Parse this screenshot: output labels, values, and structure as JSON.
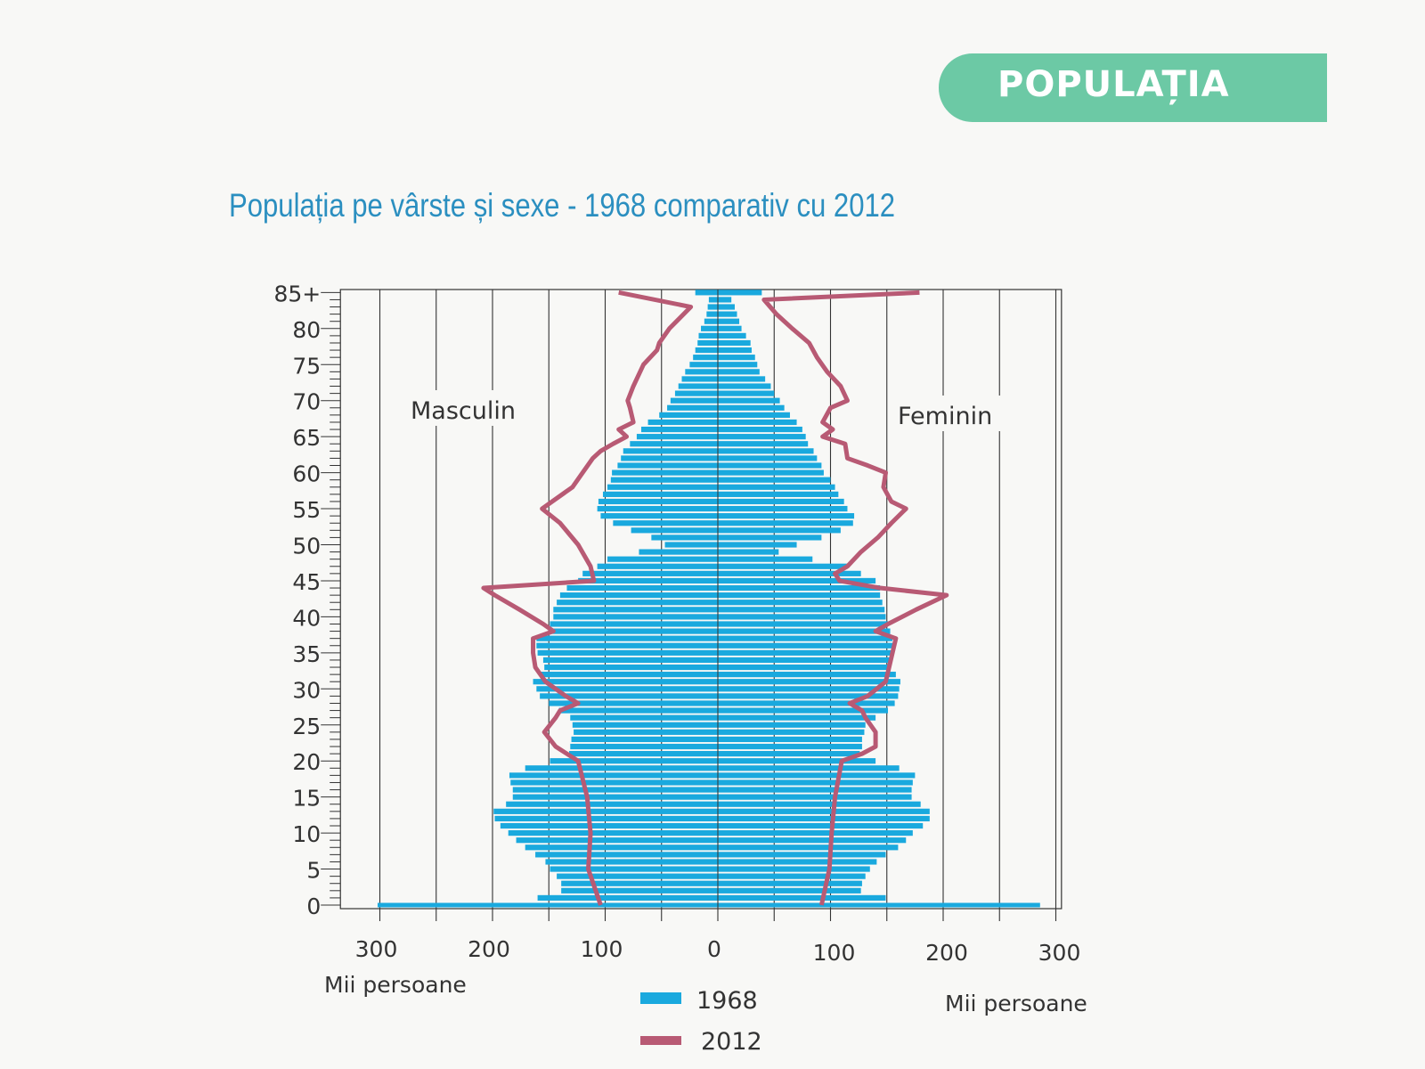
{
  "header": {
    "badge": "POPULAȚIA"
  },
  "chart_data": {
    "type": "bar",
    "subtype": "population-pyramid",
    "title": "Populația pe vârste și sexe - 1968 comparativ cu 2012",
    "xlabel_left": "Mii persoane",
    "xlabel_right": "Mii persoane",
    "side_labels": {
      "left": "Masculin",
      "right": "Feminin"
    },
    "x_ticks_left": [
      "300",
      "200",
      "100",
      "0"
    ],
    "x_ticks_right": [
      "100",
      "200",
      "300"
    ],
    "y_ticks": [
      "0",
      "5",
      "10",
      "15",
      "20",
      "25",
      "30",
      "35",
      "40",
      "45",
      "50",
      "55",
      "60",
      "65",
      "70",
      "75",
      "80",
      "85+"
    ],
    "xlim": [
      -335,
      305
    ],
    "ylim": [
      0,
      85
    ],
    "grid": "vertical, every 50",
    "legend": {
      "position": "bottom-center",
      "entries": [
        "1968",
        "2012"
      ]
    },
    "colors": {
      "1968": "#1aa9de",
      "2012": "#b85a74",
      "badge": "#6cc9a5",
      "title": "#2b8fc0"
    },
    "ages": [
      0,
      1,
      2,
      3,
      4,
      5,
      6,
      7,
      8,
      9,
      10,
      11,
      12,
      13,
      14,
      15,
      16,
      17,
      18,
      19,
      20,
      21,
      22,
      23,
      24,
      25,
      26,
      27,
      28,
      29,
      30,
      31,
      32,
      33,
      34,
      35,
      36,
      37,
      38,
      39,
      40,
      41,
      42,
      43,
      44,
      45,
      46,
      47,
      48,
      49,
      50,
      51,
      52,
      53,
      54,
      55,
      56,
      57,
      58,
      59,
      60,
      61,
      62,
      63,
      64,
      65,
      66,
      67,
      68,
      69,
      70,
      71,
      72,
      73,
      74,
      75,
      76,
      77,
      78,
      79,
      80,
      81,
      82,
      83,
      84,
      85
    ],
    "series": [
      {
        "name": "1968",
        "kind": "bars",
        "male": [
          302,
          160,
          139,
          139,
          143,
          149,
          153,
          162,
          171,
          179,
          186,
          193,
          198,
          199,
          188,
          182,
          182,
          184,
          185,
          171,
          149,
          132,
          131,
          130,
          128,
          129,
          131,
          141,
          150,
          158,
          161,
          164,
          158,
          154,
          155,
          160,
          161,
          161,
          150,
          149,
          146,
          146,
          143,
          140,
          134,
          124,
          120,
          107,
          98,
          70,
          47,
          59,
          77,
          93,
          104,
          107,
          106,
          102,
          98,
          95,
          94,
          89,
          86,
          84,
          78,
          72,
          68,
          62,
          52,
          45,
          42,
          38,
          35,
          32,
          29,
          25,
          22,
          20,
          18,
          17,
          15,
          12,
          10,
          9,
          8,
          20
        ],
        "female": [
          286,
          149,
          127,
          128,
          131,
          135,
          141,
          149,
          160,
          167,
          173,
          182,
          188,
          188,
          180,
          172,
          172,
          173,
          175,
          161,
          140,
          126,
          128,
          128,
          130,
          131,
          140,
          151,
          157,
          160,
          161,
          162,
          158,
          153,
          154,
          155,
          156,
          155,
          153,
          151,
          149,
          148,
          146,
          144,
          144,
          140,
          127,
          115,
          84,
          54,
          70,
          92,
          109,
          120,
          121,
          115,
          112,
          107,
          104,
          100,
          94,
          92,
          88,
          85,
          80,
          78,
          75,
          70,
          64,
          59,
          55,
          50,
          47,
          42,
          37,
          35,
          33,
          30,
          29,
          25,
          21,
          19,
          17,
          15,
          12,
          39
        ]
      },
      {
        "name": "2012",
        "kind": "line",
        "male": [
          [
            0,
            104
          ],
          [
            5,
            115
          ],
          [
            10,
            113
          ],
          [
            15,
            116
          ],
          [
            20,
            124
          ],
          [
            22,
            144
          ],
          [
            24,
            154
          ],
          [
            26,
            144
          ],
          [
            27,
            140
          ],
          [
            28,
            124
          ],
          [
            29,
            135
          ],
          [
            31,
            153
          ],
          [
            33,
            162
          ],
          [
            35,
            164
          ],
          [
            37,
            164
          ],
          [
            38,
            146
          ],
          [
            39,
            155
          ],
          [
            41,
            176
          ],
          [
            43,
            198
          ],
          [
            44,
            208
          ],
          [
            45,
            110
          ],
          [
            47,
            113
          ],
          [
            50,
            124
          ],
          [
            53,
            140
          ],
          [
            55,
            156
          ],
          [
            56,
            147
          ],
          [
            58,
            129
          ],
          [
            60,
            120
          ],
          [
            62,
            111
          ],
          [
            63,
            104
          ],
          [
            64,
            93
          ],
          [
            65,
            81
          ],
          [
            66,
            88
          ],
          [
            67,
            75
          ],
          [
            69,
            78
          ],
          [
            70,
            80
          ],
          [
            72,
            75
          ],
          [
            75,
            66
          ],
          [
            77,
            54
          ],
          [
            78,
            52
          ],
          [
            80,
            43
          ],
          [
            83,
            24
          ],
          [
            85,
            88
          ]
        ],
        "female": [
          [
            0,
            92
          ],
          [
            5,
            99
          ],
          [
            10,
            101
          ],
          [
            15,
            104
          ],
          [
            20,
            110
          ],
          [
            21,
            128
          ],
          [
            22,
            140
          ],
          [
            24,
            140
          ],
          [
            26,
            131
          ],
          [
            27,
            128
          ],
          [
            28,
            117
          ],
          [
            29,
            133
          ],
          [
            31,
            149
          ],
          [
            33,
            152
          ],
          [
            35,
            155
          ],
          [
            37,
            158
          ],
          [
            38,
            140
          ],
          [
            39,
            151
          ],
          [
            41,
            176
          ],
          [
            43,
            203
          ],
          [
            44,
            144
          ],
          [
            45,
            108
          ],
          [
            46,
            104
          ],
          [
            47,
            115
          ],
          [
            49,
            127
          ],
          [
            51,
            142
          ],
          [
            53,
            154
          ],
          [
            55,
            167
          ],
          [
            56,
            154
          ],
          [
            58,
            147
          ],
          [
            60,
            149
          ],
          [
            61,
            133
          ],
          [
            62,
            115
          ],
          [
            64,
            113
          ],
          [
            65,
            93
          ],
          [
            66,
            102
          ],
          [
            67,
            93
          ],
          [
            69,
            100
          ],
          [
            70,
            115
          ],
          [
            72,
            109
          ],
          [
            74,
            97
          ],
          [
            76,
            88
          ],
          [
            78,
            81
          ],
          [
            80,
            66
          ],
          [
            82,
            52
          ],
          [
            84,
            41
          ],
          [
            85,
            179
          ]
        ]
      }
    ]
  }
}
